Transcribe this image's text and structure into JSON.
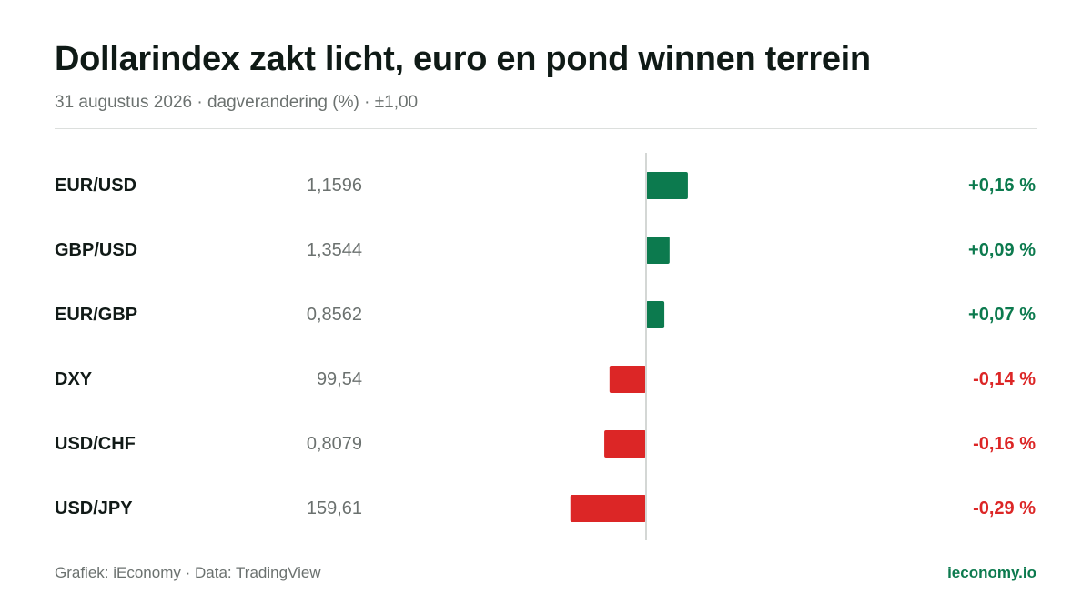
{
  "header": {
    "title": "Dollarindex zakt licht, euro en pond winnen terrein",
    "subtitle": "31 augustus 2026 · dagverandering (%) · ±1,00"
  },
  "footer": {
    "source": "Grafiek: iEconomy · Data: TradingView",
    "brand": "ieconomy.io"
  },
  "colors": {
    "positive": "#0c7a4e",
    "negative": "#dc2626",
    "axis": "#d4d7d5",
    "pair_text": "#111a17",
    "price_text": "#6b716f"
  },
  "chart_data": {
    "type": "bar",
    "orientation": "horizontal",
    "title": "Dollarindex zakt licht, euro en pond winnen terrein",
    "subtitle": "31 augustus 2026 · dagverandering (%) · ±1,00",
    "unit": "%",
    "xlim": [
      -1.0,
      1.0
    ],
    "grid": false,
    "categories": [
      "EUR/USD",
      "GBP/USD",
      "EUR/GBP",
      "DXY",
      "USD/CHF",
      "USD/JPY"
    ],
    "prices": [
      "1,1596",
      "1,3544",
      "0,8562",
      "99,54",
      "0,8079",
      "159,61"
    ],
    "values": [
      0.16,
      0.09,
      0.07,
      -0.14,
      -0.16,
      -0.29
    ],
    "value_labels": [
      "+0,16 %",
      "+0,09 %",
      "+0,07 %",
      "-0,14 %",
      "-0,16 %",
      "-0,29 %"
    ]
  }
}
